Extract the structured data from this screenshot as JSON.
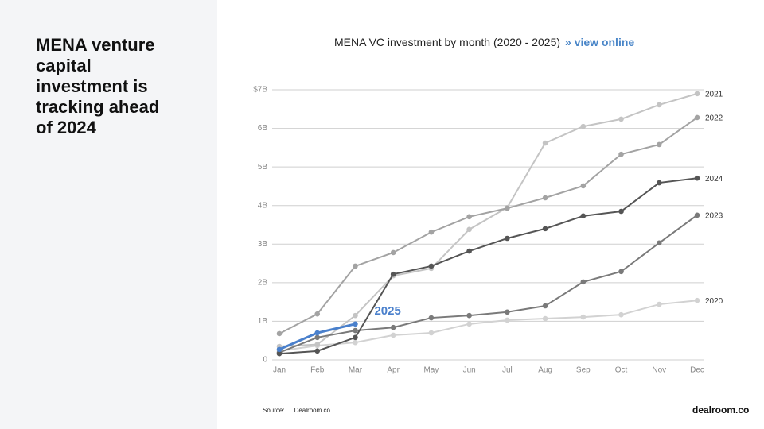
{
  "headline": "MENA venture capital investment is tracking ahead of 2024",
  "source_label": "Source:",
  "source": "Dealroom.co",
  "logo": "dealroom.co",
  "chart_data": {
    "type": "line",
    "title": "MENA VC investment by month (2020 - 2025)",
    "link": "» view online",
    "categories": [
      "Jan",
      "Feb",
      "Mar",
      "Apr",
      "May",
      "Jun",
      "Jul",
      "Aug",
      "Sep",
      "Oct",
      "Nov",
      "Dec"
    ],
    "ylim": [
      0,
      7
    ],
    "yticks": [
      0,
      {
        "value": 1,
        "label": "1B"
      },
      {
        "value": 2,
        "label": "2B"
      },
      {
        "value": 3,
        "label": "3B"
      },
      {
        "value": 4,
        "label": "4B"
      },
      {
        "value": 5,
        "label": "5B"
      },
      {
        "value": 6,
        "label": "6B"
      },
      {
        "value": 7,
        "label": "$7B"
      }
    ],
    "grid": true,
    "series": [
      {
        "name": "2020",
        "color": "#d2d2d2",
        "values": [
          0.23,
          0.37,
          0.45,
          0.64,
          0.7,
          0.93,
          1.03,
          1.07,
          1.11,
          1.17,
          1.44,
          1.54
        ]
      },
      {
        "name": "2021",
        "color": "#c4c4c4",
        "values": [
          0.35,
          0.4,
          1.15,
          2.18,
          2.37,
          3.38,
          3.95,
          5.62,
          6.05,
          6.24,
          6.61,
          6.9
        ]
      },
      {
        "name": "2022",
        "color": "#a3a3a3",
        "values": [
          0.68,
          1.19,
          2.43,
          2.78,
          3.31,
          3.71,
          3.93,
          4.2,
          4.51,
          5.33,
          5.58,
          6.28
        ]
      },
      {
        "name": "2023",
        "color": "#7a7a7a",
        "values": [
          0.19,
          0.58,
          0.76,
          0.84,
          1.09,
          1.15,
          1.24,
          1.4,
          2.02,
          2.29,
          3.03,
          3.75
        ]
      },
      {
        "name": "2024",
        "color": "#555555",
        "values": [
          0.16,
          0.23,
          0.58,
          2.22,
          2.43,
          2.82,
          3.15,
          3.4,
          3.73,
          3.85,
          4.59,
          4.71
        ]
      },
      {
        "name": "2025",
        "color": "#4a80cc",
        "values": [
          0.27,
          0.7,
          0.93,
          null,
          null,
          null,
          null,
          null,
          null,
          null,
          null,
          null
        ]
      }
    ]
  }
}
